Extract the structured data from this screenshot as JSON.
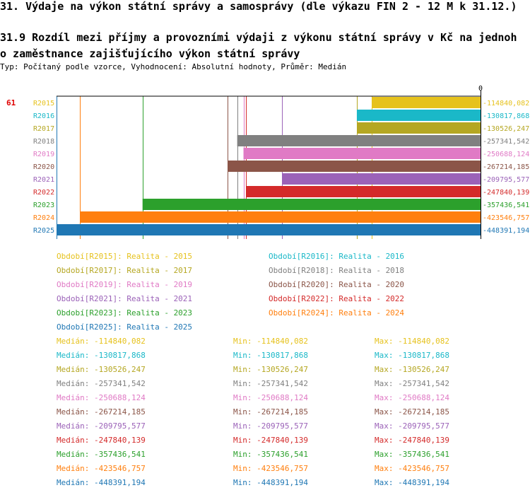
{
  "page": {
    "title": "31. Výdaje na výkon státní správy a samosprávy (dle výkazu FIN 2 - 12 M k 31.12.)",
    "subtitle_line1": "31.9 Rozdíl mezi příjmy a provozními výdaji z výkonu státní správy v Kč na jednoh",
    "subtitle_line2": "o zaměstnance zajišťujícího výkon státní správy",
    "type_line": "Typ: Počítaný podle vzorce, Vyhodnocení: Absolutní hodnoty, Průměr: Medián"
  },
  "chart_data": {
    "type": "bar",
    "orientation": "horizontal",
    "rank_label": "61",
    "axis_zero_label": "0",
    "xlim": [
      -448391.194,
      0
    ],
    "categories": [
      "R2015",
      "R2016",
      "R2017",
      "R2018",
      "R2019",
      "R2020",
      "R2021",
      "R2022",
      "R2023",
      "R2024",
      "R2025"
    ],
    "values": [
      -114840.082,
      -130817.868,
      -130526.247,
      -257341.542,
      -250688.124,
      -267214.185,
      -209795.577,
      -247840.139,
      -357436.541,
      -423546.757,
      -448391.194
    ],
    "value_labels": [
      "-114840,082",
      "-130817,868",
      "-130526,247",
      "-257341,542",
      "-250688,124",
      "-267214,185",
      "-209795,577",
      "-247840,139",
      "-357436,541",
      "-423546,757",
      "-448391,194"
    ],
    "colors": [
      "#e6c21d",
      "#1ab8c8",
      "#b5a722",
      "#808080",
      "#e07ac5",
      "#8b5548",
      "#9b62b8",
      "#d42a2a",
      "#2ca02c",
      "#ff7f0e",
      "#1f77b4"
    ],
    "legend": [
      {
        "text": "Období[R2015]: Realita - 2015",
        "color": "#e6c21d"
      },
      {
        "text": "Období[R2016]: Realita - 2016",
        "color": "#1ab8c8"
      },
      {
        "text": "Období[R2017]: Realita - 2017",
        "color": "#b5a722"
      },
      {
        "text": "Období[R2018]: Realita - 2018",
        "color": "#808080"
      },
      {
        "text": "Období[R2019]: Realita - 2019",
        "color": "#e07ac5"
      },
      {
        "text": "Období[R2020]: Realita - 2020",
        "color": "#8b5548"
      },
      {
        "text": "Období[R2021]: Realita - 2021",
        "color": "#9b62b8"
      },
      {
        "text": "Období[R2022]: Realita - 2022",
        "color": "#d42a2a"
      },
      {
        "text": "Období[R2023]: Realita - 2023",
        "color": "#2ca02c"
      },
      {
        "text": "Období[R2024]: Realita - 2024",
        "color": "#ff7f0e"
      },
      {
        "text": "Období[R2025]: Realita - 2025",
        "color": "#1f77b4"
      }
    ],
    "stats": [
      {
        "median": "Medián: -114840,082",
        "min": "Min: -114840,082",
        "max": "Max: -114840,082",
        "color": "#e6c21d"
      },
      {
        "median": "Medián: -130817,868",
        "min": "Min: -130817,868",
        "max": "Max: -130817,868",
        "color": "#1ab8c8"
      },
      {
        "median": "Medián: -130526,247",
        "min": "Min: -130526,247",
        "max": "Max: -130526,247",
        "color": "#b5a722"
      },
      {
        "median": "Medián: -257341,542",
        "min": "Min: -257341,542",
        "max": "Max: -257341,542",
        "color": "#808080"
      },
      {
        "median": "Medián: -250688,124",
        "min": "Min: -250688,124",
        "max": "Max: -250688,124",
        "color": "#e07ac5"
      },
      {
        "median": "Medián: -267214,185",
        "min": "Min: -267214,185",
        "max": "Max: -267214,185",
        "color": "#8b5548"
      },
      {
        "median": "Medián: -209795,577",
        "min": "Min: -209795,577",
        "max": "Max: -209795,577",
        "color": "#9b62b8"
      },
      {
        "median": "Medián: -247840,139",
        "min": "Min: -247840,139",
        "max": "Max: -247840,139",
        "color": "#d42a2a"
      },
      {
        "median": "Medián: -357436,541",
        "min": "Min: -357436,541",
        "max": "Max: -357436,541",
        "color": "#2ca02c"
      },
      {
        "median": "Medián: -423546,757",
        "min": "Min: -423546,757",
        "max": "Max: -423546,757",
        "color": "#ff7f0e"
      },
      {
        "median": "Medián: -448391,194",
        "min": "Min: -448391,194",
        "max": "Max: -448391,194",
        "color": "#1f77b4"
      }
    ]
  }
}
